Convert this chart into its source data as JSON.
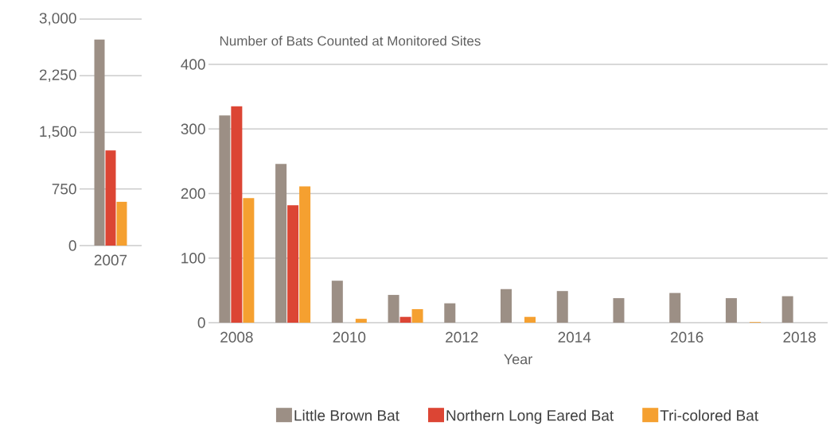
{
  "chart_data": [
    {
      "type": "bar",
      "categories": [
        "2007"
      ],
      "series": [
        {
          "color": "#9c8f85",
          "values": [
            2730
          ]
        },
        {
          "color": "#dc4534",
          "values": [
            1260
          ]
        },
        {
          "color": "#f5a030",
          "values": [
            580
          ]
        }
      ],
      "ylim": [
        0,
        3000
      ],
      "yticks": [
        0,
        750,
        {
          "value": 1500,
          "label": "1,500"
        },
        {
          "value": 2250,
          "label": "2,250"
        },
        {
          "value": 3000,
          "label": "3,000"
        }
      ],
      "grid": "y"
    },
    {
      "type": "bar",
      "title": "Number of Bats Counted at Monitored Sites",
      "xlabel": "Year",
      "categories": [
        "2008",
        null,
        "2010",
        null,
        "2012",
        null,
        "2014",
        null,
        "2016",
        null,
        "2018"
      ],
      "series": [
        {
          "name": "Little Brown Bat",
          "color": "#9c8f85",
          "values": [
            321,
            246,
            65,
            43,
            30,
            52,
            49,
            38,
            46,
            38,
            41
          ]
        },
        {
          "name": "Northern Long Eared Bat",
          "color": "#dc4534",
          "values": [
            335,
            182,
            null,
            9,
            null,
            null,
            null,
            null,
            null,
            null,
            null
          ]
        },
        {
          "name": "Tri-colored Bat",
          "color": "#f5a030",
          "values": [
            193,
            211,
            6,
            21,
            null,
            9,
            null,
            null,
            null,
            1,
            null
          ]
        }
      ],
      "ylim": [
        0,
        400
      ],
      "yticks": [
        0,
        100,
        200,
        300,
        400
      ],
      "grid": "y",
      "legend": "bottom"
    }
  ]
}
